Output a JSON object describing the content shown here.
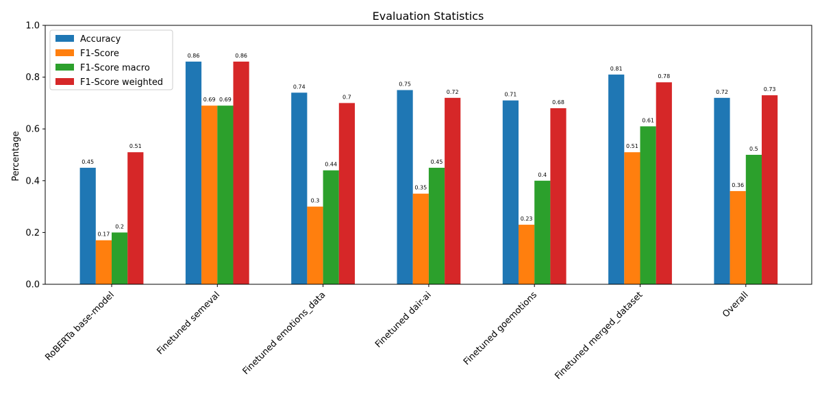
{
  "chart_data": {
    "type": "bar",
    "title": "Evaluation Statistics",
    "xlabel": "",
    "ylabel": "Percentage",
    "ylim": [
      0,
      1.0
    ],
    "yticks": [
      "0.0",
      "0.2",
      "0.4",
      "0.6",
      "0.8",
      "1.0"
    ],
    "ytick_values": [
      0,
      0.2,
      0.4,
      0.6,
      0.8,
      1.0
    ],
    "categories": [
      "RoBERTa base-model",
      "Finetuned semeval",
      "Finetuned emotions_data",
      "Finetuned dair-ai",
      "Finetuned goemotions",
      "Finetuned merged_dataset",
      "Overall"
    ],
    "series": [
      {
        "name": "Accuracy",
        "color": "#1f77b4",
        "values": [
          0.45,
          0.86,
          0.74,
          0.75,
          0.71,
          0.81,
          0.72
        ]
      },
      {
        "name": "F1-Score",
        "color": "#ff7f0e",
        "values": [
          0.17,
          0.69,
          0.3,
          0.35,
          0.23,
          0.51,
          0.36
        ]
      },
      {
        "name": "F1-Score macro",
        "color": "#2ca02c",
        "values": [
          0.2,
          0.69,
          0.44,
          0.45,
          0.4,
          0.61,
          0.5
        ]
      },
      {
        "name": "F1-Score weighted",
        "color": "#d62728",
        "values": [
          0.51,
          0.86,
          0.7,
          0.72,
          0.68,
          0.78,
          0.73
        ]
      }
    ],
    "legend_position": "top-left",
    "grid": false
  }
}
